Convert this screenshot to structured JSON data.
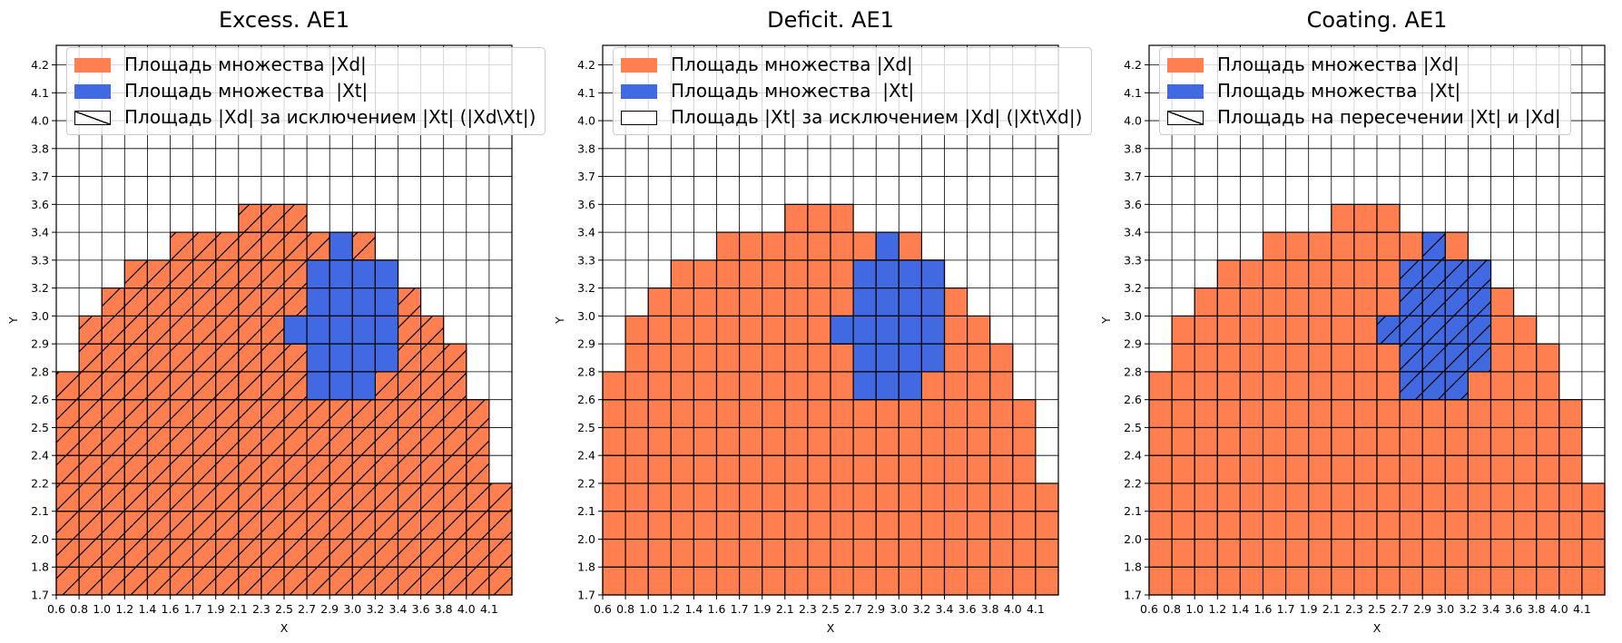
{
  "chart_data": [
    {
      "type": "heatmap",
      "title": "Excess. AE1",
      "xlabel": "X",
      "ylabel": "Y",
      "hatch_target": "xd_minus_xt",
      "legend": [
        {
          "label": "Площадь множества |Xd|",
          "patch": "xd"
        },
        {
          "label": "Площадь множества  |Xt|",
          "patch": "xt"
        },
        {
          "label": "Площадь |Xd| за исключением |Xt| (|Xd\\Xt|)",
          "patch": "hatch"
        }
      ]
    },
    {
      "type": "heatmap",
      "title": "Deficit. AE1",
      "xlabel": "X",
      "ylabel": "Y",
      "hatch_target": "none",
      "legend": [
        {
          "label": "Площадь множества |Xd|",
          "patch": "xd"
        },
        {
          "label": "Площадь множества  |Xt|",
          "patch": "xt"
        },
        {
          "label": "Площадь |Xt| за исключением |Xd| (|Xt\\Xd|)",
          "patch": "empty"
        }
      ]
    },
    {
      "type": "heatmap",
      "title": "Coating. AE1",
      "xlabel": "X",
      "ylabel": "Y",
      "hatch_target": "xt",
      "legend": [
        {
          "label": "Площадь множества |Xd|",
          "patch": "xd"
        },
        {
          "label": "Площадь множества  |Xt|",
          "patch": "xt"
        },
        {
          "label": "Площадь на пересечении |Xt| и |Xd|",
          "patch": "hatch"
        }
      ]
    }
  ],
  "grid": {
    "x_ticks": [
      "0.6",
      "0.8",
      "1.0",
      "1.2",
      "1.4",
      "1.6",
      "1.7",
      "1.9",
      "2.1",
      "2.3",
      "2.5",
      "2.7",
      "2.9",
      "3.0",
      "3.2",
      "3.4",
      "3.6",
      "3.8",
      "4.0",
      "4.1"
    ],
    "y_ticks": [
      "1.7",
      "1.8",
      "2.0",
      "2.1",
      "2.2",
      "2.4",
      "2.5",
      "2.6",
      "2.8",
      "2.9",
      "3.0",
      "3.2",
      "3.3",
      "3.4",
      "3.6",
      "3.7",
      "3.8",
      "4.0",
      "4.1",
      "4.2"
    ],
    "xd_column_top": {
      "0.6": "2.8",
      "0.8": "3.0",
      "1.0": "3.2",
      "1.2": "3.3",
      "1.4": "3.3",
      "1.6": "3.4",
      "1.7": "3.4",
      "1.9": "3.4",
      "2.1": "3.6",
      "2.3": "3.6",
      "2.5": "3.6",
      "2.7": "3.4",
      "2.9": "3.4",
      "3.0": "3.4",
      "3.2": "3.3",
      "3.4": "3.2",
      "3.6": "3.0",
      "3.8": "2.9",
      "4.0": "2.6",
      "4.1": "2.2"
    },
    "xd_column_bottom": "1.7",
    "xt_cells_by_row": {
      "3.3": [
        "2.9"
      ],
      "3.2": [
        "2.7",
        "2.9",
        "3.0",
        "3.2"
      ],
      "3.0": [
        "2.7",
        "2.9",
        "3.0",
        "3.2"
      ],
      "2.9": [
        "2.5",
        "2.7",
        "2.9",
        "3.0",
        "3.2"
      ],
      "2.8": [
        "2.7",
        "2.9",
        "3.0",
        "3.2"
      ],
      "2.6": [
        "2.7",
        "2.9",
        "3.0"
      ]
    },
    "grid_on": true,
    "legend_placement": "upper-left"
  },
  "colors": {
    "xd": "#FF7F50",
    "xt": "#4169E1",
    "edge": "#000000",
    "grid": "#000000"
  }
}
